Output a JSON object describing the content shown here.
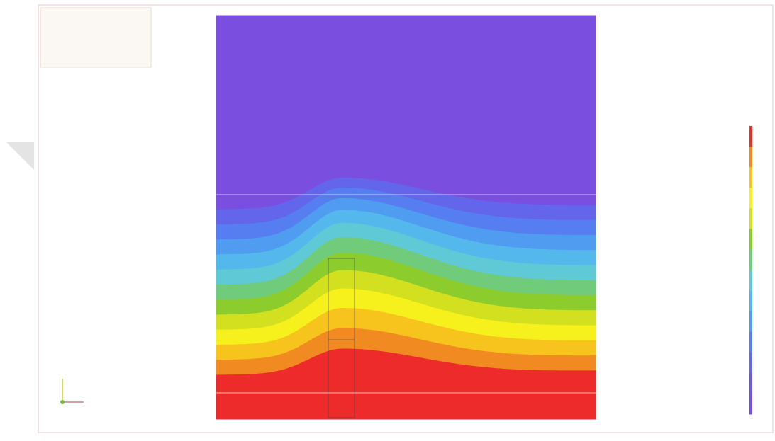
{
  "contour": {
    "bands": [
      "#7a4fdf",
      "#6f55e4",
      "#6366ea",
      "#567ef0",
      "#4f9cf0",
      "#55b8ec",
      "#5fc9d6",
      "#70cc7a",
      "#8ccc2c",
      "#d2e020",
      "#f6f01c",
      "#f7c41e",
      "#f28a22",
      "#ee2b2b"
    ]
  }
}
